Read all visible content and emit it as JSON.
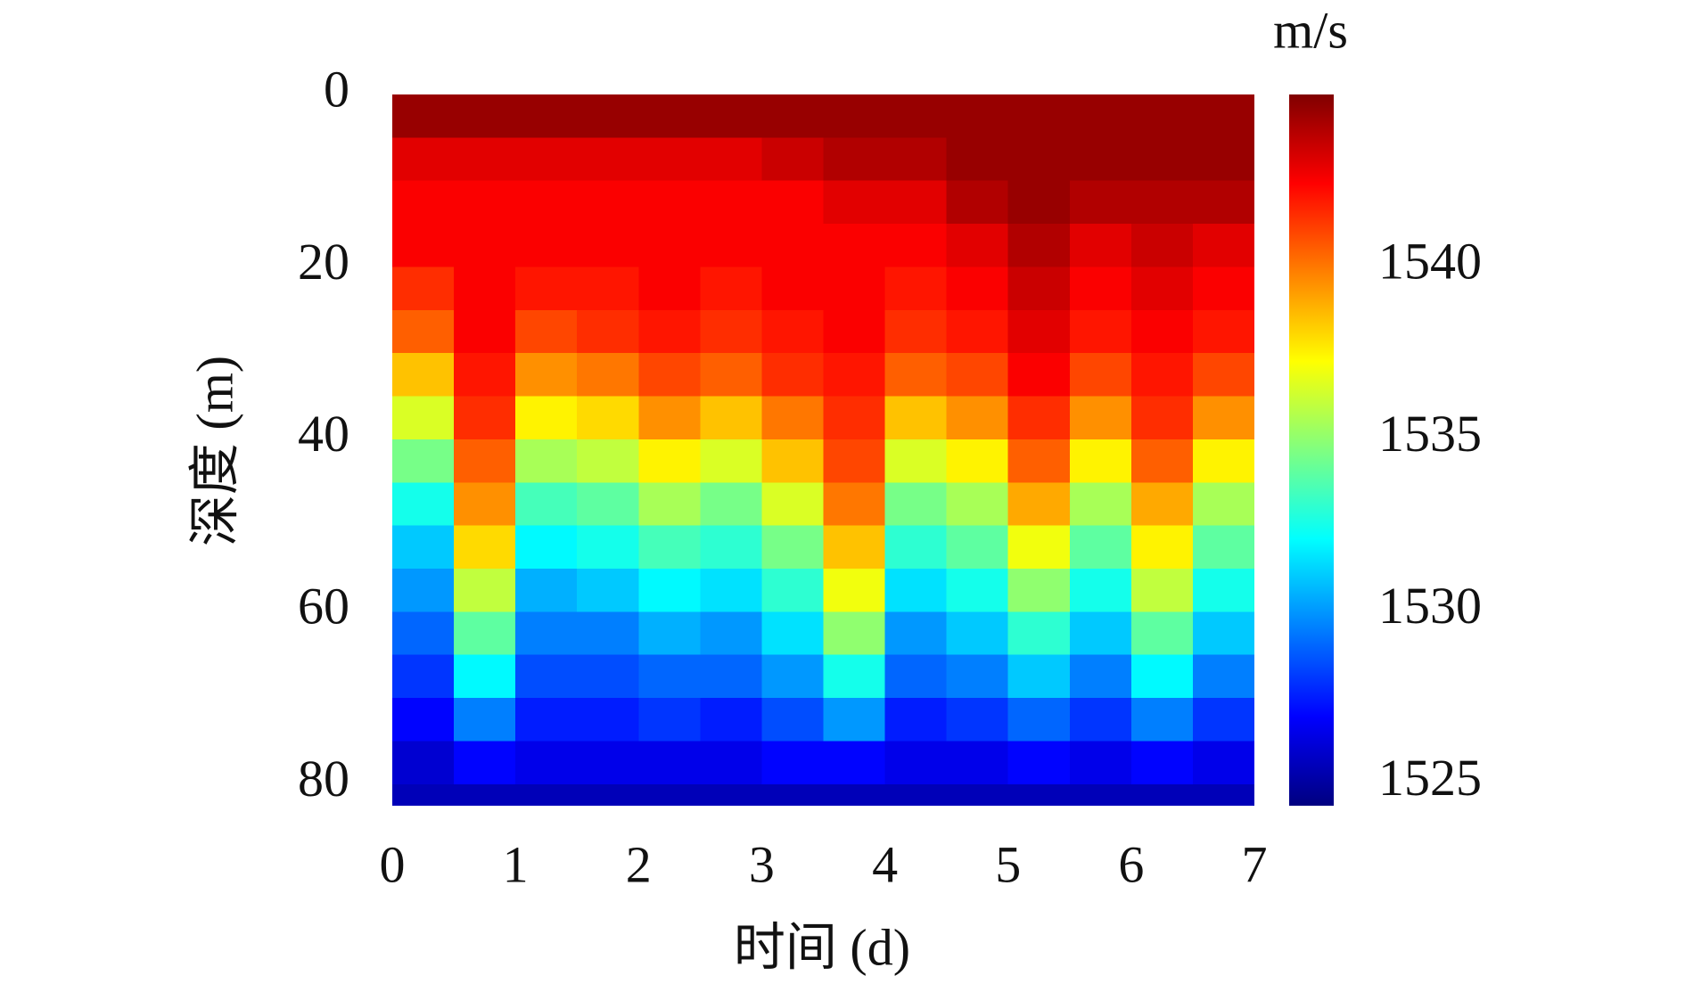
{
  "chart_data": {
    "type": "heatmap",
    "xlabel": "时间 (d)",
    "ylabel": "深度 (m)",
    "colorbar_label": "m/s",
    "colormap": "jet",
    "x": [
      0.25,
      0.75,
      1.25,
      1.75,
      2.25,
      2.75,
      3.25,
      3.75,
      4.25,
      4.75,
      5.25,
      5.75,
      6.25,
      6.75
    ],
    "y": [
      2.5,
      7.5,
      12.5,
      17.5,
      22.5,
      27.5,
      32.5,
      37.5,
      42.5,
      47.5,
      52.5,
      57.5,
      62.5,
      67.5,
      72.5,
      77.5,
      82.5
    ],
    "values": [
      [
        1544.5,
        1543,
        1542.5,
        1542.5,
        1541.5,
        1540.5,
        1538.5,
        1536.5,
        1534.5,
        1532.5,
        1531,
        1530,
        1529,
        1528,
        1527,
        1526,
        1525.5
      ],
      [
        1544.5,
        1543,
        1542.5,
        1542.5,
        1542.5,
        1542.5,
        1542,
        1541.5,
        1540.5,
        1539.5,
        1538,
        1536,
        1534,
        1532,
        1529.5,
        1527,
        1525.5
      ],
      [
        1544.5,
        1543,
        1542.5,
        1542.5,
        1542,
        1541,
        1539.5,
        1537.5,
        1535.5,
        1533.5,
        1532,
        1530.5,
        1529.5,
        1528.5,
        1527.5,
        1526.5,
        1525.5
      ],
      [
        1544.5,
        1543,
        1542.5,
        1542.5,
        1542,
        1541.5,
        1540,
        1538,
        1536,
        1534,
        1532.5,
        1531,
        1529.5,
        1528.5,
        1527.5,
        1526.5,
        1525.5
      ],
      [
        1544.5,
        1543,
        1542.5,
        1542.5,
        1542.5,
        1542,
        1541,
        1539.5,
        1537.5,
        1535.5,
        1533.5,
        1532,
        1530.5,
        1529,
        1528,
        1526.5,
        1525.5
      ],
      [
        1544.5,
        1543,
        1542.5,
        1542.5,
        1542,
        1541.5,
        1540.5,
        1538.5,
        1536.5,
        1534.5,
        1533,
        1531.5,
        1530,
        1529,
        1527.5,
        1526.5,
        1525.5
      ],
      [
        1544.5,
        1543.5,
        1542.5,
        1542.5,
        1542.5,
        1542,
        1541.5,
        1540,
        1538.5,
        1536.5,
        1534.5,
        1533,
        1531.5,
        1530,
        1528.5,
        1527,
        1525.5
      ],
      [
        1544.5,
        1544,
        1543,
        1542.5,
        1542.5,
        1542.5,
        1542,
        1541.5,
        1541,
        1540,
        1538.5,
        1537,
        1535,
        1532.5,
        1530,
        1527,
        1525.5
      ],
      [
        1544.5,
        1544,
        1543,
        1542.5,
        1542,
        1541.5,
        1540.5,
        1538.5,
        1536.5,
        1534.5,
        1533,
        1531.5,
        1530,
        1529,
        1527.5,
        1526.5,
        1525.5
      ],
      [
        1544.5,
        1544.5,
        1544,
        1543,
        1542.5,
        1542,
        1541,
        1539.5,
        1537.5,
        1535.5,
        1534,
        1532.5,
        1531,
        1529.5,
        1528,
        1526.5,
        1525.5
      ],
      [
        1544.5,
        1544.5,
        1544.5,
        1544,
        1543.5,
        1543,
        1542.5,
        1541.5,
        1540.5,
        1539,
        1537,
        1535,
        1533,
        1531,
        1529,
        1527,
        1525.5
      ],
      [
        1544.5,
        1544.5,
        1544,
        1543,
        1542.5,
        1542,
        1541,
        1539.5,
        1537.5,
        1535.5,
        1534,
        1532.5,
        1531,
        1529.5,
        1528,
        1526.5,
        1525.5
      ],
      [
        1544.5,
        1544.5,
        1544,
        1543.5,
        1543,
        1542.5,
        1542,
        1541.5,
        1540.5,
        1539,
        1537.5,
        1536,
        1534,
        1532,
        1529.5,
        1527,
        1525.5
      ],
      [
        1544.5,
        1544.5,
        1544,
        1543,
        1542.5,
        1542,
        1541,
        1539.5,
        1537.5,
        1535.5,
        1534,
        1532.5,
        1531,
        1529.5,
        1528,
        1526.5,
        1525.5
      ]
    ],
    "xlim": [
      0,
      7
    ],
    "xticks": [
      0,
      1,
      2,
      3,
      4,
      5,
      6,
      7
    ],
    "ylim": [
      0,
      82.5
    ],
    "yticks": [
      0,
      20,
      40,
      60,
      80
    ],
    "clim": [
      1524.35,
      1545
    ],
    "cticks": [
      1525,
      1530,
      1535,
      1540
    ]
  }
}
